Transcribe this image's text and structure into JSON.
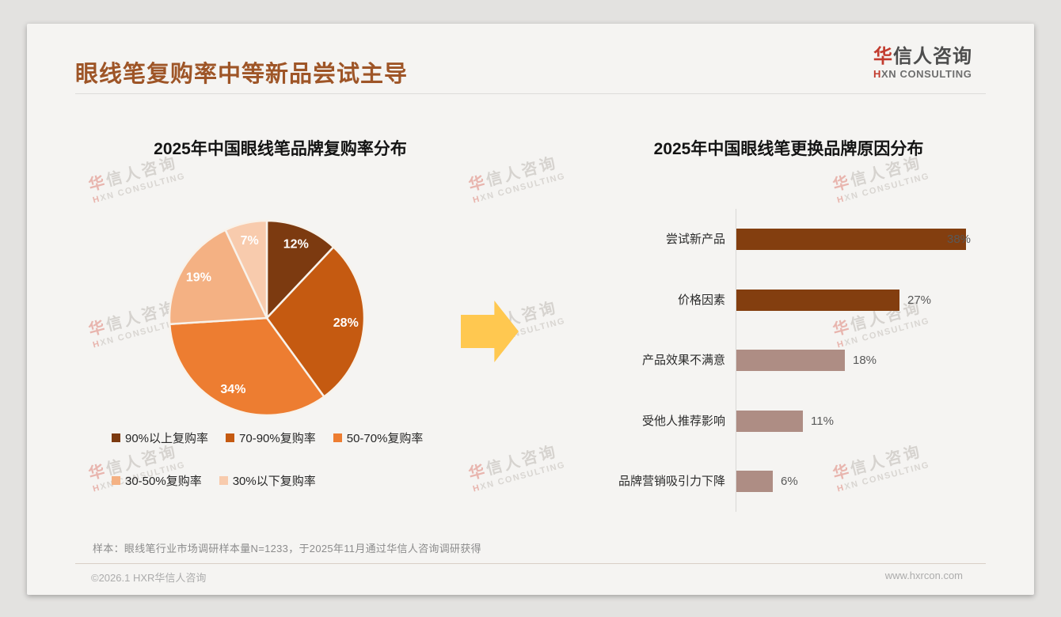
{
  "page": {
    "title": "眼线笔复购率中等新品尝试主导",
    "logo": {
      "zh_first": "华",
      "zh_rest": "信人咨询",
      "en_first": "H",
      "en_rest": "XN CONSULTING"
    },
    "watermark": {
      "zh": "华信人咨询",
      "en": "HXN CONSULTING"
    },
    "footnote": "样本：眼线笔行业市场调研样本量N=1233，于2025年11月通过华信人咨询调研获得",
    "footer": {
      "copyright": "©2026.1 HXR华信人咨询",
      "website": "www.hxrcon.com"
    }
  },
  "colors": {
    "title_brown": "#9E5527",
    "logo_red": "#C23B2E",
    "arrow_yellow": "#FFC850",
    "pie_stroke": "#F8F2EA",
    "bar_brown": "#833E0F",
    "bar_mauve": "#AE8D84",
    "value_label_gray": "#595959"
  },
  "icons": [
    {
      "name": "right-arrow-icon",
      "color": "#FFC850"
    }
  ],
  "chart_data": [
    {
      "type": "pie",
      "title": "2025年中国眼线笔品牌复购率分布",
      "labels": [
        "90%以上复购率",
        "70-90%复购率",
        "50-70%复购率",
        "30-50%复购率",
        "30%以下复购率"
      ],
      "values": [
        12,
        28,
        34,
        19,
        7
      ],
      "data_labels": [
        "12%",
        "28%",
        "34%",
        "19%",
        "7%"
      ],
      "colors": [
        "#7C3A10",
        "#C55A11",
        "#ED7D31",
        "#F4B183",
        "#F8CBAD"
      ],
      "start_angle_deg": 0,
      "direction": "clockwise",
      "legend_position": "bottom",
      "data_label_color": "#FFFFFF"
    },
    {
      "type": "bar",
      "orientation": "horizontal",
      "title": "2025年中国眼线笔更换品牌原因分布",
      "categories": [
        "尝试新产品",
        "价格因素",
        "产品效果不满意",
        "受他人推荐影响",
        "品牌营销吸引力下降"
      ],
      "values": [
        38,
        27,
        18,
        11,
        6
      ],
      "value_labels": [
        "38%",
        "27%",
        "18%",
        "11%",
        "6%"
      ],
      "bar_colors": [
        "#833E0F",
        "#833E0F",
        "#AE8D84",
        "#AE8D84",
        "#AE8D84"
      ],
      "xlim": [
        0,
        40
      ],
      "grid": false,
      "axis_line": true
    }
  ]
}
